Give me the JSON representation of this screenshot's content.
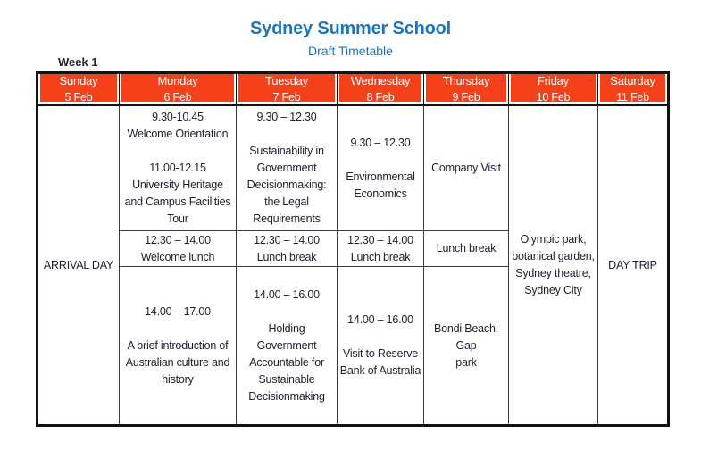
{
  "page": {
    "title": "Sydney Summer School",
    "subtitle": "Draft Timetable",
    "week_label": "Week 1"
  },
  "colors": {
    "accent_orange": "#f4411a",
    "title_blue": "#1b75bc",
    "text_dark": "#1e1e2e"
  },
  "table": {
    "days": [
      {
        "name": "Sunday",
        "date": "5 Feb"
      },
      {
        "name": "Monday",
        "date": "6 Feb"
      },
      {
        "name": "Tuesday",
        "date": "7 Feb"
      },
      {
        "name": "Wednesday",
        "date": "8 Feb"
      },
      {
        "name": "Thursday",
        "date": "9 Feb"
      },
      {
        "name": "Friday",
        "date": "10 Feb"
      },
      {
        "name": "Saturday",
        "date": "11 Feb"
      }
    ],
    "cells": {
      "sunday_all_day": "ARRIVAL DAY",
      "monday_morning": "9.30-10.45\nWelcome Orientation\n\n11.00-12.15\nUniversity Heritage\nand Campus Facilities\nTour",
      "tuesday_morning": "9.30 – 12.30\n\nSustainability in\nGovernment\nDecisionmaking:\nthe Legal\nRequirements",
      "wednesday_morning": "9.30 – 12.30\n\nEnvironmental\nEconomics",
      "thursday_morning": "Company Visit",
      "monday_lunch": "12.30 – 14.00\nWelcome lunch",
      "tuesday_lunch": "12.30 – 14.00\nLunch break",
      "wednesday_lunch": "12.30 – 14.00\nLunch break",
      "thursday_lunch": "Lunch break",
      "monday_afternoon": "14.00 – 17.00\n\nA brief introduction of\nAustralian culture and\nhistory",
      "tuesday_afternoon": "14.00 – 16.00\n\nHolding Government\nAccountable for\nSustainable\nDecisionmaking",
      "wednesday_afternoon": "14.00 – 16.00\n\nVisit to Reserve\nBank of Australia",
      "thursday_afternoon": "Bondi Beach, Gap\npark",
      "friday_all_day": "Olympic park,\nbotanical garden,\nSydney theatre,\nSydney City",
      "saturday_all_day": "DAY TRIP"
    }
  }
}
